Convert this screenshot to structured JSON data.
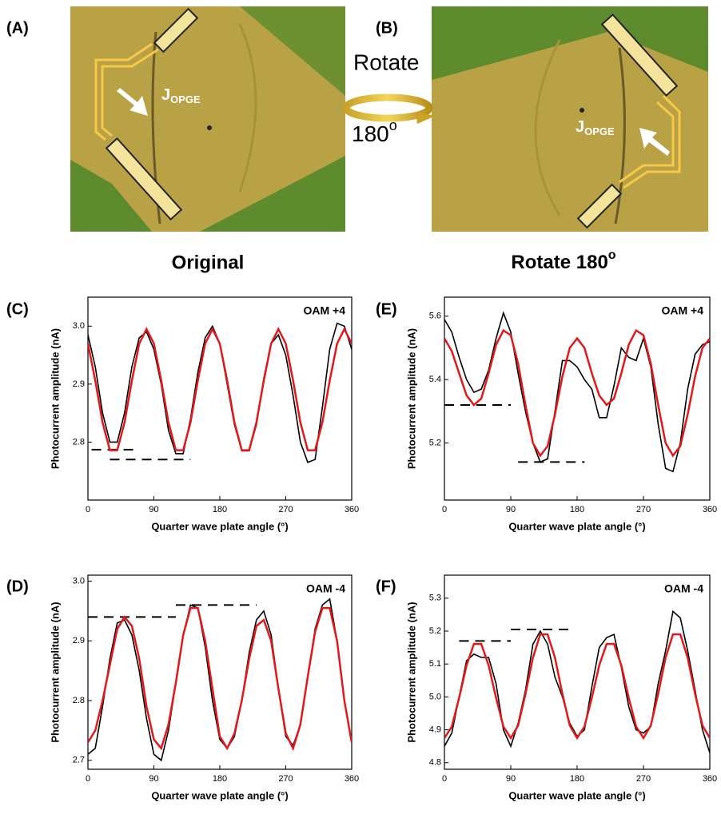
{
  "figure": {
    "panel_a": "(A)",
    "panel_b": "(B)",
    "rotate_word": "Rotate",
    "rotate_angle": {
      "text": "180",
      "sup": "o"
    },
    "current_a": {
      "text": "J",
      "sub": "OPGE"
    },
    "current_b": {
      "text": "J",
      "sub": "OPGE"
    },
    "caption_a": "Original",
    "caption_b": {
      "text": "Rotate 180",
      "sup": "o"
    }
  },
  "chart_data": [
    {
      "type": "line",
      "panel": "(C)",
      "annotation": "OAM +4",
      "x_label": "Quarter wave plate angle (°)",
      "y_label": "Photocurrent amplitude (nA)",
      "xlim": [
        0,
        360
      ],
      "xticks": [
        0,
        90,
        180,
        270,
        360
      ],
      "ylim": [
        2.7,
        3.05
      ],
      "yticks": [
        {
          "value": 2.8,
          "label": "2.8"
        },
        {
          "value": 2.9,
          "label": "2.9"
        },
        {
          "value": 3.0,
          "label": "3.0"
        }
      ],
      "x": [
        0,
        10,
        20,
        30,
        40,
        50,
        60,
        70,
        80,
        90,
        100,
        110,
        120,
        130,
        140,
        150,
        160,
        170,
        180,
        190,
        200,
        210,
        220,
        230,
        240,
        250,
        260,
        270,
        280,
        290,
        300,
        310,
        320,
        330,
        340,
        350,
        360
      ],
      "series": [
        {
          "color": "#000000",
          "values": [
            2.985,
            2.93,
            2.85,
            2.8,
            2.8,
            2.85,
            2.93,
            2.98,
            2.99,
            2.96,
            2.9,
            2.82,
            2.78,
            2.78,
            2.84,
            2.92,
            2.98,
            3.0,
            2.97,
            2.9,
            2.83,
            2.785,
            2.785,
            2.83,
            2.91,
            2.97,
            2.985,
            2.95,
            2.88,
            2.8,
            2.765,
            2.77,
            2.86,
            2.96,
            3.005,
            3.0,
            2.96
          ]
        },
        {
          "color": "#e0191c",
          "values": [
            2.97,
            2.906,
            2.834,
            2.786,
            2.786,
            2.834,
            2.906,
            2.97,
            2.995,
            2.97,
            2.906,
            2.834,
            2.786,
            2.786,
            2.834,
            2.906,
            2.97,
            2.995,
            2.97,
            2.906,
            2.834,
            2.786,
            2.786,
            2.834,
            2.906,
            2.97,
            2.995,
            2.97,
            2.906,
            2.834,
            2.786,
            2.786,
            2.834,
            2.906,
            2.97,
            2.995,
            2.97
          ]
        }
      ],
      "reference_lines": [
        {
          "y": 2.787,
          "x": [
            5,
            65
          ]
        },
        {
          "y": 2.77,
          "x": [
            30,
            140
          ]
        }
      ]
    },
    {
      "type": "line",
      "panel": "(E)",
      "annotation": "OAM +4",
      "x_label": "Quarter wave plate angle (°)",
      "y_label": "Photocurrent amplitude (nA)",
      "xlim": [
        0,
        360
      ],
      "xticks": [
        0,
        90,
        180,
        270,
        360
      ],
      "ylim": [
        5.02,
        5.66
      ],
      "yticks": [
        5.2,
        5.4,
        5.6
      ],
      "x": [
        0,
        10,
        20,
        30,
        40,
        50,
        60,
        70,
        80,
        90,
        100,
        110,
        120,
        130,
        140,
        150,
        160,
        170,
        180,
        190,
        200,
        210,
        220,
        230,
        240,
        250,
        260,
        270,
        280,
        290,
        300,
        310,
        320,
        330,
        340,
        350,
        360
      ],
      "series": [
        {
          "color": "#000000",
          "values": [
            5.59,
            5.55,
            5.47,
            5.4,
            5.36,
            5.37,
            5.43,
            5.53,
            5.61,
            5.55,
            5.42,
            5.3,
            5.2,
            5.14,
            5.15,
            5.3,
            5.46,
            5.46,
            5.44,
            5.4,
            5.37,
            5.28,
            5.28,
            5.38,
            5.5,
            5.47,
            5.46,
            5.53,
            5.44,
            5.26,
            5.12,
            5.11,
            5.2,
            5.37,
            5.48,
            5.51,
            5.52
          ]
        },
        {
          "color": "#e0191c",
          "values": [
            5.53,
            5.49,
            5.42,
            5.35,
            5.32,
            5.34,
            5.42,
            5.51,
            5.555,
            5.54,
            5.45,
            5.32,
            5.2,
            5.16,
            5.19,
            5.29,
            5.41,
            5.5,
            5.53,
            5.5,
            5.42,
            5.35,
            5.32,
            5.34,
            5.42,
            5.51,
            5.555,
            5.54,
            5.45,
            5.32,
            5.2,
            5.16,
            5.19,
            5.29,
            5.41,
            5.5,
            5.53
          ]
        }
      ],
      "reference_lines": [
        {
          "y": 5.32,
          "x": [
            0,
            90
          ]
        },
        {
          "y": 5.14,
          "x": [
            100,
            190
          ]
        }
      ]
    },
    {
      "type": "line",
      "panel": "(D)",
      "annotation": "OAM -4",
      "x_label": "Quarter wave plate angle (°)",
      "y_label": "Photocurrent amplitude (nA)",
      "xlim": [
        0,
        360
      ],
      "xticks": [
        0,
        90,
        180,
        270,
        360
      ],
      "ylim": [
        2.685,
        3.01
      ],
      "yticks": [
        2.7,
        2.8,
        2.9,
        {
          "value": 3.0,
          "label": "3.0"
        }
      ],
      "x": [
        0,
        10,
        20,
        30,
        40,
        50,
        60,
        70,
        80,
        90,
        100,
        110,
        120,
        130,
        140,
        150,
        160,
        170,
        180,
        190,
        200,
        210,
        220,
        230,
        240,
        250,
        260,
        270,
        280,
        290,
        300,
        310,
        320,
        330,
        340,
        350,
        360
      ],
      "series": [
        {
          "color": "#000000",
          "values": [
            2.71,
            2.72,
            2.79,
            2.87,
            2.93,
            2.935,
            2.91,
            2.85,
            2.77,
            2.71,
            2.7,
            2.75,
            2.83,
            2.91,
            2.96,
            2.955,
            2.89,
            2.8,
            2.735,
            2.72,
            2.74,
            2.8,
            2.88,
            2.935,
            2.95,
            2.91,
            2.82,
            2.74,
            2.725,
            2.76,
            2.84,
            2.92,
            2.96,
            2.97,
            2.9,
            2.8,
            2.73
          ]
        },
        {
          "color": "#e0191c",
          "values": [
            2.73,
            2.75,
            2.8,
            2.86,
            2.92,
            2.94,
            2.925,
            2.87,
            2.79,
            2.735,
            2.72,
            2.76,
            2.83,
            2.91,
            2.955,
            2.955,
            2.9,
            2.82,
            2.74,
            2.72,
            2.745,
            2.8,
            2.87,
            2.925,
            2.935,
            2.9,
            2.82,
            2.745,
            2.72,
            2.76,
            2.84,
            2.915,
            2.955,
            2.955,
            2.9,
            2.8,
            2.73
          ]
        }
      ],
      "reference_lines": [
        {
          "y": 2.94,
          "x": [
            0,
            120
          ]
        },
        {
          "y": 2.96,
          "x": [
            120,
            230
          ]
        }
      ]
    },
    {
      "type": "line",
      "panel": "(F)",
      "annotation": "OAM -4",
      "x_label": "Quarter wave plate angle (°)",
      "y_label": "Photocurrent amplitude (nA)",
      "xlim": [
        0,
        360
      ],
      "xticks": [
        0,
        90,
        180,
        270,
        360
      ],
      "ylim": [
        4.78,
        5.37
      ],
      "yticks": [
        4.8,
        4.9,
        {
          "value": 5.0,
          "label": "5.0"
        },
        5.1,
        5.2,
        5.3
      ],
      "x": [
        0,
        10,
        20,
        30,
        40,
        50,
        60,
        70,
        80,
        90,
        100,
        110,
        120,
        130,
        140,
        150,
        160,
        170,
        180,
        190,
        200,
        210,
        220,
        230,
        240,
        250,
        260,
        270,
        280,
        290,
        300,
        310,
        320,
        330,
        340,
        350,
        360
      ],
      "series": [
        {
          "color": "#000000",
          "values": [
            4.85,
            4.89,
            5.0,
            5.11,
            5.13,
            5.12,
            5.12,
            5.04,
            4.9,
            4.85,
            4.92,
            5.02,
            5.16,
            5.2,
            5.16,
            5.06,
            5.0,
            4.92,
            4.88,
            4.9,
            5.03,
            5.15,
            5.18,
            5.19,
            5.09,
            4.97,
            4.9,
            4.89,
            4.91,
            5.04,
            5.14,
            5.26,
            5.24,
            5.14,
            5.02,
            4.9,
            4.83
          ]
        },
        {
          "color": "#e0191c",
          "values": [
            4.875,
            4.91,
            4.997,
            5.096,
            5.161,
            5.161,
            5.096,
            4.997,
            4.91,
            4.875,
            4.913,
            5.009,
            5.119,
            5.19,
            5.19,
            5.119,
            5.009,
            4.913,
            4.875,
            4.91,
            4.997,
            5.096,
            5.161,
            5.161,
            5.096,
            4.997,
            4.91,
            4.875,
            4.913,
            5.009,
            5.119,
            5.19,
            5.19,
            5.119,
            5.009,
            4.913,
            4.875
          ]
        }
      ],
      "reference_lines": [
        {
          "y": 5.17,
          "x": [
            20,
            90
          ]
        },
        {
          "y": 5.205,
          "x": [
            90,
            170
          ]
        }
      ]
    }
  ]
}
